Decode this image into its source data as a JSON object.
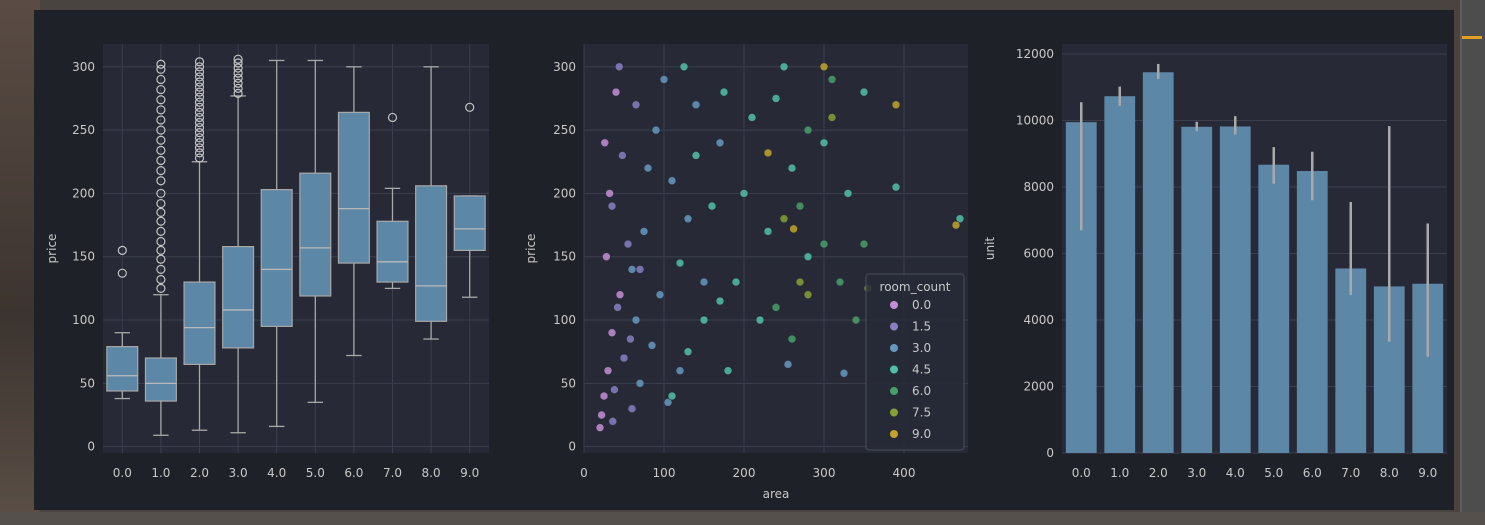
{
  "chart_data": [
    {
      "type": "box",
      "title": "",
      "xlabel": "",
      "ylabel": "price",
      "categories": [
        "0.0",
        "1.0",
        "2.0",
        "3.0",
        "4.0",
        "5.0",
        "6.0",
        "7.0",
        "8.0",
        "9.0"
      ],
      "ylim": [
        -5,
        318
      ],
      "yticks": [
        0,
        50,
        100,
        150,
        200,
        250,
        300
      ],
      "grid": true,
      "boxes": [
        {
          "min": 38,
          "q1": 44,
          "median": 56,
          "q3": 79,
          "max": 90,
          "outliers": [
            137,
            155
          ]
        },
        {
          "min": 9,
          "q1": 36,
          "median": 50,
          "q3": 70,
          "max": 120,
          "outliers": [
            125,
            132,
            140,
            148,
            155,
            162,
            170,
            178,
            185,
            192,
            200,
            210,
            218,
            226,
            234,
            242,
            250,
            258,
            266,
            274,
            282,
            290,
            298,
            302
          ]
        },
        {
          "min": 13,
          "q1": 65,
          "median": 94,
          "q3": 130,
          "max": 225,
          "outliers": [
            228,
            232,
            236,
            240,
            244,
            248,
            252,
            256,
            260,
            264,
            268,
            272,
            276,
            280,
            284,
            288,
            292,
            296,
            300,
            304
          ]
        },
        {
          "min": 11,
          "q1": 78,
          "median": 108,
          "q3": 158,
          "max": 277,
          "outliers": [
            279,
            283,
            287,
            291,
            295,
            299,
            303,
            306
          ]
        },
        {
          "min": 16,
          "q1": 95,
          "median": 140,
          "q3": 203,
          "max": 305,
          "outliers": []
        },
        {
          "min": 35,
          "q1": 119,
          "median": 157,
          "q3": 216,
          "max": 305,
          "outliers": []
        },
        {
          "min": 72,
          "q1": 145,
          "median": 188,
          "q3": 264,
          "max": 300,
          "outliers": []
        },
        {
          "min": 125,
          "q1": 130,
          "median": 146,
          "q3": 178,
          "max": 204,
          "outliers": [
            260
          ]
        },
        {
          "min": 85,
          "q1": 99,
          "median": 127,
          "q3": 206,
          "max": 300,
          "outliers": []
        },
        {
          "min": 118,
          "q1": 155,
          "median": 172,
          "q3": 198,
          "max": 198,
          "outliers": [
            268
          ]
        }
      ]
    },
    {
      "type": "scatter",
      "title": "",
      "xlabel": "area",
      "ylabel": "price",
      "xlim": [
        0,
        480
      ],
      "ylim": [
        -5,
        318
      ],
      "xticks": [
        0,
        100,
        200,
        300,
        400
      ],
      "yticks": [
        0,
        50,
        100,
        150,
        200,
        250,
        300
      ],
      "grid": true,
      "legend": {
        "title": "room_count",
        "position": "right",
        "entries": [
          "0.0",
          "1.5",
          "3.0",
          "4.5",
          "6.0",
          "7.5",
          "9.0"
        ]
      },
      "colors": [
        "#c58ed6",
        "#8a7fc4",
        "#6699c0",
        "#52bfa8",
        "#4a9e6a",
        "#85a035",
        "#c2a52a"
      ],
      "points": [
        {
          "x": 25,
          "y": 40,
          "room_count": 0.0
        },
        {
          "x": 30,
          "y": 60,
          "room_count": 0.0
        },
        {
          "x": 22,
          "y": 25,
          "room_count": 0.0
        },
        {
          "x": 35,
          "y": 90,
          "room_count": 0.0
        },
        {
          "x": 28,
          "y": 150,
          "room_count": 0.0
        },
        {
          "x": 40,
          "y": 280,
          "room_count": 0.0
        },
        {
          "x": 32,
          "y": 200,
          "room_count": 0.0
        },
        {
          "x": 20,
          "y": 15,
          "room_count": 0.0
        },
        {
          "x": 45,
          "y": 120,
          "room_count": 0.0
        },
        {
          "x": 26,
          "y": 240,
          "room_count": 0.0
        },
        {
          "x": 38,
          "y": 45,
          "room_count": 1.5
        },
        {
          "x": 50,
          "y": 70,
          "room_count": 1.5
        },
        {
          "x": 42,
          "y": 110,
          "room_count": 1.5
        },
        {
          "x": 55,
          "y": 160,
          "room_count": 1.5
        },
        {
          "x": 60,
          "y": 30,
          "room_count": 1.5
        },
        {
          "x": 35,
          "y": 190,
          "room_count": 1.5
        },
        {
          "x": 48,
          "y": 230,
          "room_count": 1.5
        },
        {
          "x": 65,
          "y": 270,
          "room_count": 1.5
        },
        {
          "x": 44,
          "y": 300,
          "room_count": 1.5
        },
        {
          "x": 58,
          "y": 85,
          "room_count": 1.5
        },
        {
          "x": 70,
          "y": 140,
          "room_count": 1.5
        },
        {
          "x": 36,
          "y": 20,
          "room_count": 1.5
        },
        {
          "x": 70,
          "y": 50,
          "room_count": 3.0
        },
        {
          "x": 85,
          "y": 80,
          "room_count": 3.0
        },
        {
          "x": 95,
          "y": 120,
          "room_count": 3.0
        },
        {
          "x": 75,
          "y": 170,
          "room_count": 3.0
        },
        {
          "x": 110,
          "y": 210,
          "room_count": 3.0
        },
        {
          "x": 90,
          "y": 250,
          "room_count": 3.0
        },
        {
          "x": 100,
          "y": 290,
          "room_count": 3.0
        },
        {
          "x": 65,
          "y": 100,
          "room_count": 3.0
        },
        {
          "x": 120,
          "y": 60,
          "room_count": 3.0
        },
        {
          "x": 130,
          "y": 180,
          "room_count": 3.0
        },
        {
          "x": 80,
          "y": 220,
          "room_count": 3.0
        },
        {
          "x": 140,
          "y": 270,
          "room_count": 3.0
        },
        {
          "x": 60,
          "y": 140,
          "room_count": 3.0
        },
        {
          "x": 105,
          "y": 35,
          "room_count": 3.0
        },
        {
          "x": 150,
          "y": 130,
          "room_count": 3.0
        },
        {
          "x": 170,
          "y": 240,
          "room_count": 3.0
        },
        {
          "x": 255,
          "y": 65,
          "room_count": 3.0
        },
        {
          "x": 325,
          "y": 58,
          "room_count": 3.0
        },
        {
          "x": 110,
          "y": 40,
          "room_count": 4.5
        },
        {
          "x": 130,
          "y": 75,
          "room_count": 4.5
        },
        {
          "x": 150,
          "y": 100,
          "room_count": 4.5
        },
        {
          "x": 120,
          "y": 145,
          "room_count": 4.5
        },
        {
          "x": 160,
          "y": 190,
          "room_count": 4.5
        },
        {
          "x": 140,
          "y": 230,
          "room_count": 4.5
        },
        {
          "x": 175,
          "y": 280,
          "room_count": 4.5
        },
        {
          "x": 190,
          "y": 130,
          "room_count": 4.5
        },
        {
          "x": 200,
          "y": 200,
          "room_count": 4.5
        },
        {
          "x": 210,
          "y": 260,
          "room_count": 4.5
        },
        {
          "x": 230,
          "y": 170,
          "room_count": 4.5
        },
        {
          "x": 250,
          "y": 300,
          "room_count": 4.5
        },
        {
          "x": 260,
          "y": 220,
          "room_count": 4.5
        },
        {
          "x": 280,
          "y": 150,
          "room_count": 4.5
        },
        {
          "x": 300,
          "y": 240,
          "room_count": 4.5
        },
        {
          "x": 330,
          "y": 200,
          "room_count": 4.5
        },
        {
          "x": 350,
          "y": 280,
          "room_count": 4.5
        },
        {
          "x": 180,
          "y": 60,
          "room_count": 4.5
        },
        {
          "x": 170,
          "y": 115,
          "room_count": 4.5
        },
        {
          "x": 125,
          "y": 300,
          "room_count": 4.5
        },
        {
          "x": 390,
          "y": 205,
          "room_count": 4.5
        },
        {
          "x": 470,
          "y": 180,
          "room_count": 4.5
        },
        {
          "x": 220,
          "y": 100,
          "room_count": 4.5
        },
        {
          "x": 240,
          "y": 275,
          "room_count": 4.5
        },
        {
          "x": 240,
          "y": 110,
          "room_count": 6.0
        },
        {
          "x": 270,
          "y": 190,
          "room_count": 6.0
        },
        {
          "x": 300,
          "y": 160,
          "room_count": 6.0
        },
        {
          "x": 320,
          "y": 130,
          "room_count": 6.0
        },
        {
          "x": 280,
          "y": 250,
          "room_count": 6.0
        },
        {
          "x": 310,
          "y": 290,
          "room_count": 6.0
        },
        {
          "x": 350,
          "y": 160,
          "room_count": 6.0
        },
        {
          "x": 260,
          "y": 85,
          "room_count": 6.0
        },
        {
          "x": 340,
          "y": 100,
          "room_count": 6.0
        },
        {
          "x": 250,
          "y": 180,
          "room_count": 7.5
        },
        {
          "x": 280,
          "y": 120,
          "room_count": 7.5
        },
        {
          "x": 310,
          "y": 260,
          "room_count": 7.5
        },
        {
          "x": 355,
          "y": 125,
          "room_count": 7.5
        },
        {
          "x": 270,
          "y": 130,
          "room_count": 7.5
        },
        {
          "x": 300,
          "y": 300,
          "room_count": 9.0
        },
        {
          "x": 262,
          "y": 172,
          "room_count": 9.0
        },
        {
          "x": 465,
          "y": 175,
          "room_count": 9.0
        },
        {
          "x": 390,
          "y": 270,
          "room_count": 9.0
        },
        {
          "x": 230,
          "y": 232,
          "room_count": 9.0
        }
      ]
    },
    {
      "type": "bar",
      "title": "",
      "xlabel": "",
      "ylabel": "unit",
      "categories": [
        "0.0",
        "1.0",
        "2.0",
        "3.0",
        "4.0",
        "5.0",
        "6.0",
        "7.0",
        "8.0",
        "9.0"
      ],
      "values": [
        9950,
        10730,
        11450,
        9810,
        9820,
        8670,
        8480,
        5550,
        5010,
        5090
      ],
      "error_low": [
        6700,
        10440,
        11250,
        9680,
        9580,
        8100,
        7600,
        4750,
        3350,
        2900
      ],
      "error_high": [
        10550,
        11020,
        11700,
        9960,
        10130,
        9200,
        9060,
        7550,
        9830,
        6900
      ],
      "ylim": [
        0,
        12300
      ],
      "yticks": [
        0,
        2000,
        4000,
        6000,
        8000,
        10000,
        12000
      ],
      "grid": true
    }
  ]
}
